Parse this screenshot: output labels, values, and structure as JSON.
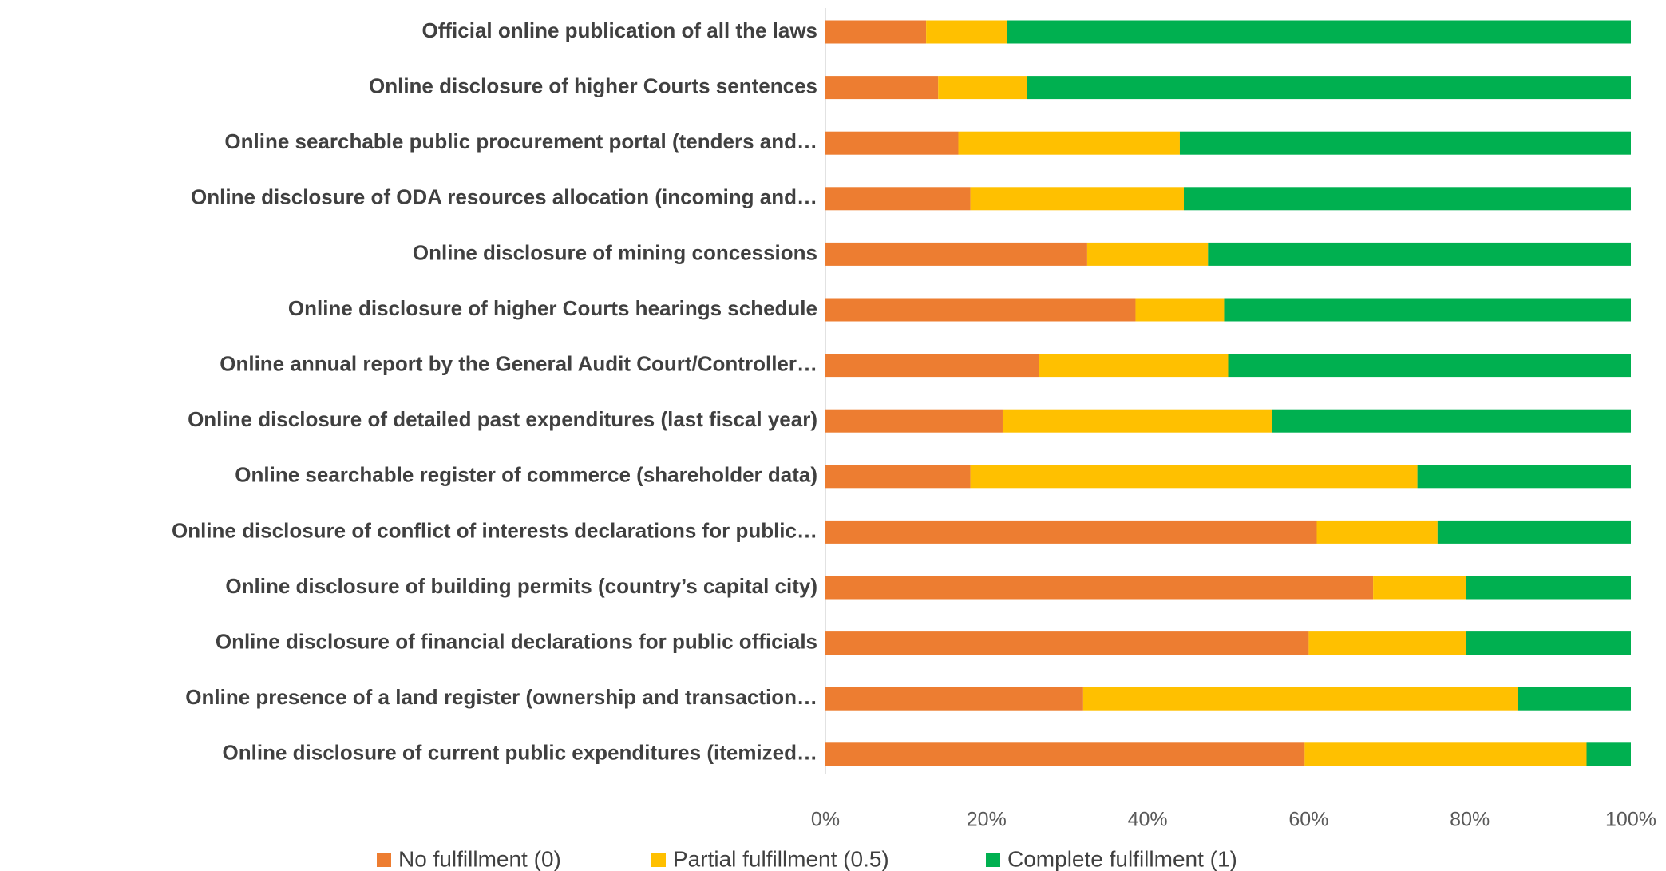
{
  "chart_data": {
    "type": "stacked_barh",
    "categories": [
      "Official online publication of all the laws",
      "Online disclosure of higher Courts sentences",
      "Online searchable public procurement portal (tenders and…",
      "Online disclosure of ODA resources allocation (incoming and…",
      "Online disclosure of mining concessions",
      "Online disclosure of higher Courts hearings schedule",
      "Online annual report by the General Audit Court/Controller…",
      "Online disclosure of detailed past expenditures (last fiscal year)",
      "Online searchable register of commerce (shareholder data)",
      "Online disclosure of conflict of interests declarations for public…",
      "Online disclosure of building permits (country’s capital city)",
      "Online disclosure of financial declarations for public officials",
      "Online presence of a land register (ownership and transaction…",
      "Online disclosure of current public expenditures (itemized…"
    ],
    "series": [
      {
        "name": "No fulfillment (0)",
        "color": "#ed7d31",
        "values": [
          12.5,
          14,
          16.5,
          18,
          32.5,
          38.5,
          26.5,
          22,
          18,
          61,
          68,
          60,
          32,
          59.5
        ]
      },
      {
        "name": "Partial fulfillment (0.5)",
        "color": "#ffc000",
        "values": [
          10,
          11,
          27.5,
          26.5,
          15,
          11,
          23.5,
          33.5,
          55.5,
          15,
          11.5,
          19.5,
          54,
          35
        ]
      },
      {
        "name": "Complete fulfillment (1)",
        "color": "#00b050",
        "values": [
          77.5,
          75,
          56,
          55.5,
          52.5,
          50.5,
          50,
          44.5,
          26.5,
          24,
          20.5,
          20.5,
          14,
          5.5
        ]
      }
    ],
    "xlim": [
      0,
      100
    ],
    "xticks": [
      {
        "value": 0,
        "label": "0%"
      },
      {
        "value": 20,
        "label": "20%"
      },
      {
        "value": 40,
        "label": "40%"
      },
      {
        "value": 60,
        "label": "60%"
      },
      {
        "value": 80,
        "label": "80%"
      },
      {
        "value": 100,
        "label": "100%"
      }
    ],
    "legend": "bottom"
  }
}
